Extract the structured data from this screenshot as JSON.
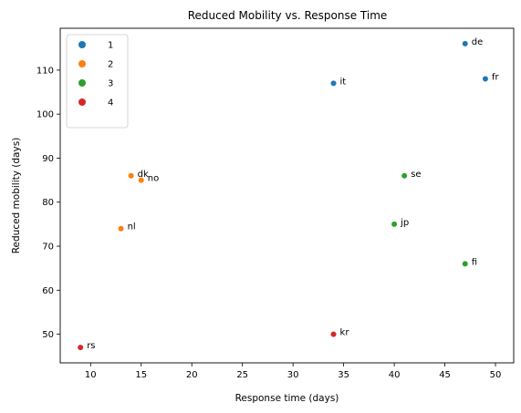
{
  "chart_data": {
    "type": "scatter",
    "title": "Reduced Mobility vs. Response Time",
    "xlabel": "Response time (days)",
    "ylabel": "Reduced mobility (days)",
    "xlim": [
      7,
      51.8
    ],
    "ylim": [
      43.5,
      119.5
    ],
    "xticks": [
      10,
      15,
      20,
      25,
      30,
      35,
      40,
      45,
      50
    ],
    "yticks": [
      50,
      60,
      70,
      80,
      90,
      100,
      110
    ],
    "grid": false,
    "legend": {
      "placement": "top-left",
      "entries": [
        {
          "label": "1",
          "color": "#1f77b4"
        },
        {
          "label": "2",
          "color": "#ff7f0e"
        },
        {
          "label": "3",
          "color": "#2ca02c"
        },
        {
          "label": "4",
          "color": "#d62728"
        }
      ]
    },
    "points": [
      {
        "label": "de",
        "x": 47,
        "y": 116,
        "group": "1"
      },
      {
        "label": "fr",
        "x": 49,
        "y": 108,
        "group": "1"
      },
      {
        "label": "it",
        "x": 34,
        "y": 107,
        "group": "1"
      },
      {
        "label": "dk",
        "x": 14,
        "y": 86,
        "group": "2"
      },
      {
        "label": "no",
        "x": 15,
        "y": 85,
        "group": "2"
      },
      {
        "label": "nl",
        "x": 13,
        "y": 74,
        "group": "2"
      },
      {
        "label": "se",
        "x": 41,
        "y": 86,
        "group": "3"
      },
      {
        "label": "jp",
        "x": 40,
        "y": 75,
        "group": "3"
      },
      {
        "label": "fi",
        "x": 47,
        "y": 66,
        "group": "3"
      },
      {
        "label": "kr",
        "x": 34,
        "y": 50,
        "group": "4"
      },
      {
        "label": "rs",
        "x": 9,
        "y": 47,
        "group": "4"
      }
    ]
  }
}
